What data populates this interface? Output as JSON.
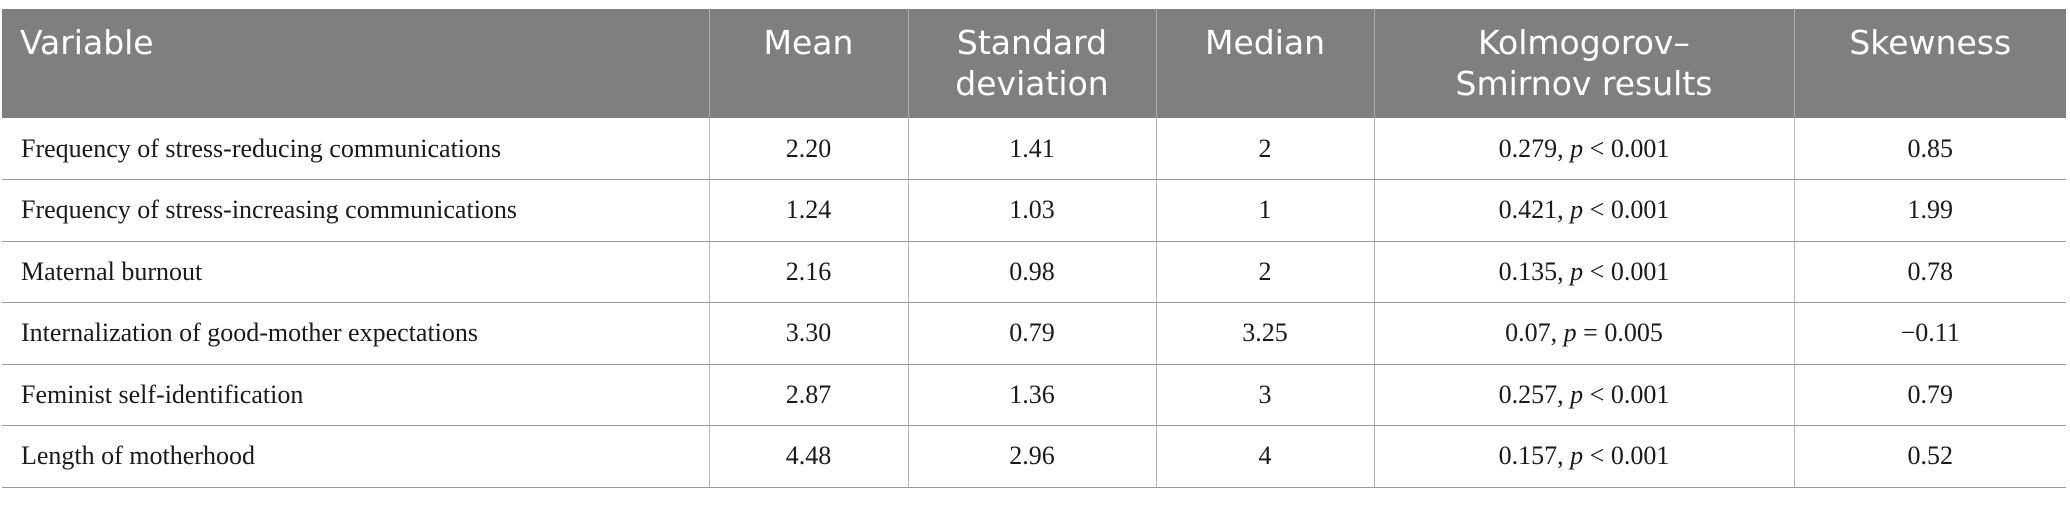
{
  "table": {
    "headers": [
      "Variable",
      "Mean",
      "Standard deviation",
      "Median",
      "Kolmogorov–Smirnov results",
      "Skewness"
    ],
    "rows": [
      {
        "variable": "Frequency of stress-reducing communications",
        "mean": "2.20",
        "sd": "1.41",
        "median": "2",
        "ks_stat": "0.279,",
        "ks_p_label": "p",
        "ks_p_value": "< 0.001",
        "skewness": "0.85"
      },
      {
        "variable": "Frequency of stress-increasing communications",
        "mean": "1.24",
        "sd": "1.03",
        "median": "1",
        "ks_stat": "0.421,",
        "ks_p_label": "p",
        "ks_p_value": "< 0.001",
        "skewness": "1.99"
      },
      {
        "variable": "Maternal burnout",
        "mean": "2.16",
        "sd": "0.98",
        "median": "2",
        "ks_stat": "0.135,",
        "ks_p_label": "p",
        "ks_p_value": "< 0.001",
        "skewness": "0.78"
      },
      {
        "variable": "Internalization of good-mother expectations",
        "mean": "3.30",
        "sd": "0.79",
        "median": "3.25",
        "ks_stat": "0.07,",
        "ks_p_label": "p",
        "ks_p_value": "= 0.005",
        "skewness": "−0.11"
      },
      {
        "variable": "Feminist self-identification",
        "mean": "2.87",
        "sd": "1.36",
        "median": "3",
        "ks_stat": "0.257,",
        "ks_p_label": "p",
        "ks_p_value": "< 0.001",
        "skewness": "0.79"
      },
      {
        "variable": "Length of motherhood",
        "mean": "4.48",
        "sd": "2.96",
        "median": "4",
        "ks_stat": "0.157,",
        "ks_p_label": "p",
        "ks_p_value": "< 0.001",
        "skewness": "0.52"
      }
    ]
  }
}
